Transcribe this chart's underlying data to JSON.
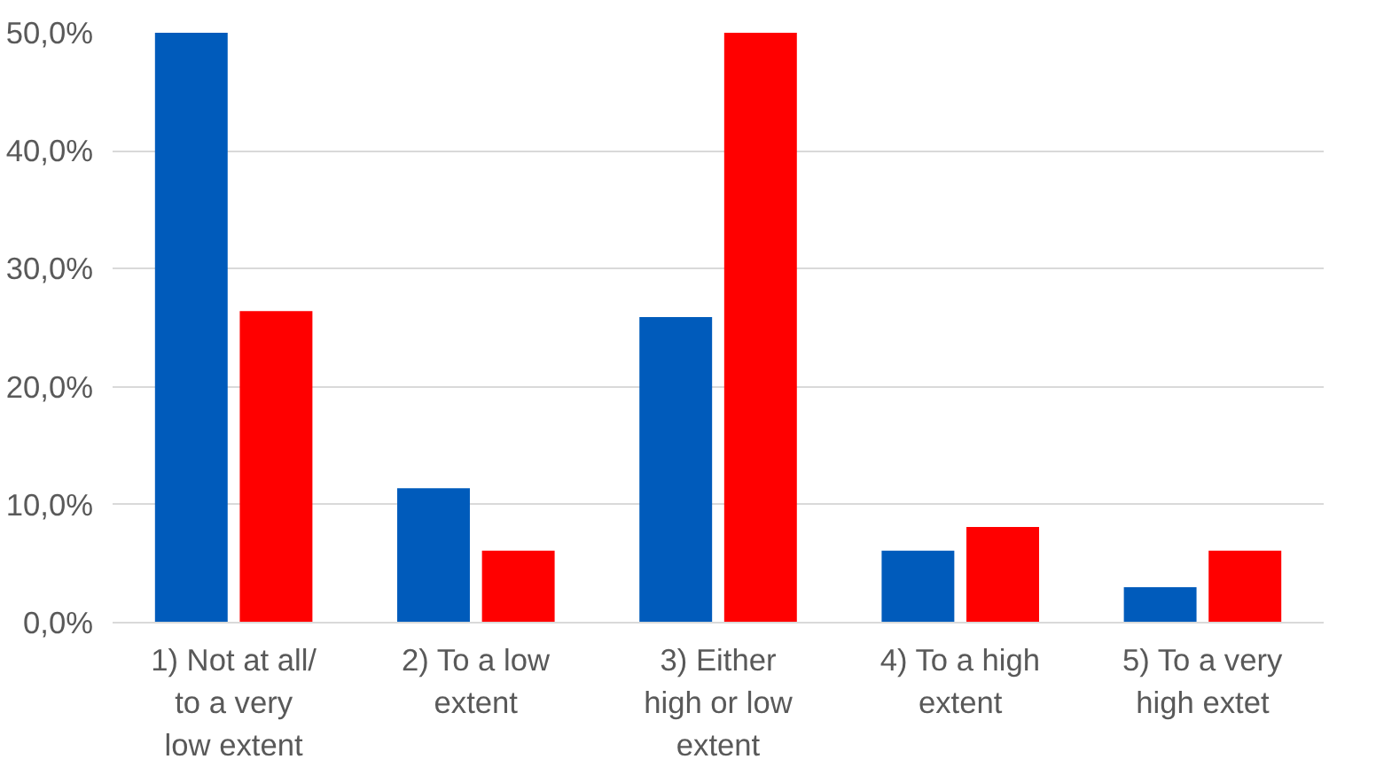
{
  "chart_data": {
    "type": "bar",
    "categories": [
      "1) Not at all/\nto a very\nlow extent",
      "2) To a low\nextent",
      "3) Either\nhigh or low\nextent",
      "4) To a high\nextent",
      "5) To a very\nhigh extet"
    ],
    "series": [
      {
        "color": "#005bbb",
        "values": [
          50.0,
          11.4,
          25.9,
          6.1,
          3.0
        ]
      },
      {
        "color": "#ff0000",
        "values": [
          26.4,
          6.1,
          50.0,
          8.1,
          6.1
        ]
      }
    ],
    "ylim": [
      0,
      50
    ],
    "yticks": [
      {
        "value": 0,
        "label": "0,0%"
      },
      {
        "value": 10,
        "label": "10,0%"
      },
      {
        "value": 20,
        "label": "20,0%"
      },
      {
        "value": 30,
        "label": "30,0%"
      },
      {
        "value": 40,
        "label": "40,0%"
      },
      {
        "value": 50,
        "label": "50,0%"
      }
    ],
    "grid": "y"
  }
}
